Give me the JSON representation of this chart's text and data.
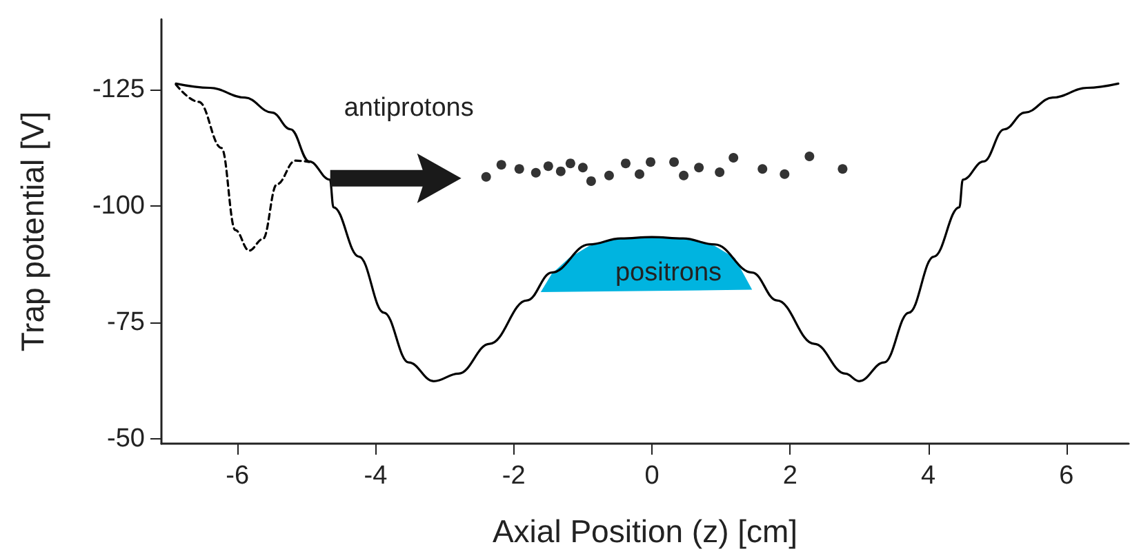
{
  "chart_data": {
    "type": "line",
    "xlabel": "Axial Position (z) [cm]",
    "ylabel": "Trap potential [V]",
    "xlim": [
      -7.1,
      6.9
    ],
    "ylim": [
      -49,
      -140
    ],
    "xticks": [
      -6,
      -4,
      -2,
      0,
      2,
      4,
      6
    ],
    "yticks": [
      -125,
      -100,
      -75,
      -50
    ],
    "marker": "none",
    "series": [
      {
        "color": "#000000",
        "line_style": "solid",
        "x": [
          -6.89,
          -6.4,
          -5.89,
          -5.5,
          -5.23,
          -4.96,
          -4.66,
          -4.61,
          -4.24,
          -3.88,
          -3.52,
          -3.16,
          -2.8,
          -2.35,
          -1.81,
          -1.45,
          -0.91,
          -0.45,
          0,
          0.45,
          0.91,
          1.45,
          1.81,
          2.35,
          2.8,
          3.0,
          3.36,
          3.72,
          4.08,
          4.45,
          4.5,
          4.8,
          5.1,
          5.4,
          5.8,
          6.3,
          6.75
        ],
        "values": [
          -126.2,
          -125.3,
          -123.2,
          -120,
          -116.4,
          -109.5,
          -105.6,
          -99.7,
          -89.1,
          -77.1,
          -66.4,
          -62.4,
          -64,
          -70.4,
          -79.7,
          -85.7,
          -91.7,
          -93,
          -93.3,
          -93,
          -91.7,
          -85.7,
          -79.7,
          -70.4,
          -64,
          -62.4,
          -66.4,
          -77.1,
          -89.1,
          -99.7,
          -105.6,
          -109.5,
          -116.4,
          -120,
          -123.2,
          -125.3,
          -126.2
        ]
      },
      {
        "color": "#000000",
        "line_style": "dashed",
        "x": [
          -6.89,
          -6.56,
          -6.23,
          -6.03,
          -5.83,
          -5.63,
          -5.43,
          -5.16,
          -4.96
        ],
        "values": [
          -126,
          -122.3,
          -112.4,
          -94.8,
          -90.4,
          -92.9,
          -104.6,
          -109.7,
          -109.4
        ]
      },
      {
        "type": "area",
        "name": "positrons",
        "color": "#00b4e0",
        "x": [
          -1.61,
          -1.45,
          -1.2,
          -0.91,
          -0.6,
          -0.3,
          0,
          0.3,
          0.6,
          0.91,
          1.2,
          1.45
        ],
        "values": [
          -81.5,
          -85.4,
          -88.8,
          -91.4,
          -92.6,
          -93.1,
          -93.3,
          -93.1,
          -92.6,
          -91.4,
          -88.8,
          -82
        ]
      },
      {
        "type": "scatter",
        "name": "antiprotons",
        "color": "#000000",
        "marker": "circle",
        "x": [
          -2.4,
          -2.18,
          -1.92,
          -1.68,
          -1.5,
          -1.32,
          -1.18,
          -1.0,
          -0.88,
          -0.62,
          -0.38,
          -0.18,
          -0.02,
          0.32,
          0.46,
          0.68,
          0.98,
          1.18,
          1.6,
          1.92,
          2.28,
          2.76
        ],
        "values": [
          -106.2,
          -108.8,
          -107.9,
          -107.1,
          -108.5,
          -107.4,
          -109.1,
          -108.2,
          -105.3,
          -106.5,
          -109.1,
          -106.8,
          -109.4,
          -109.4,
          -106.5,
          -108.2,
          -107.2,
          -110.3,
          -107.9,
          -106.8,
          -110.6,
          -107.9
        ]
      }
    ]
  }
}
